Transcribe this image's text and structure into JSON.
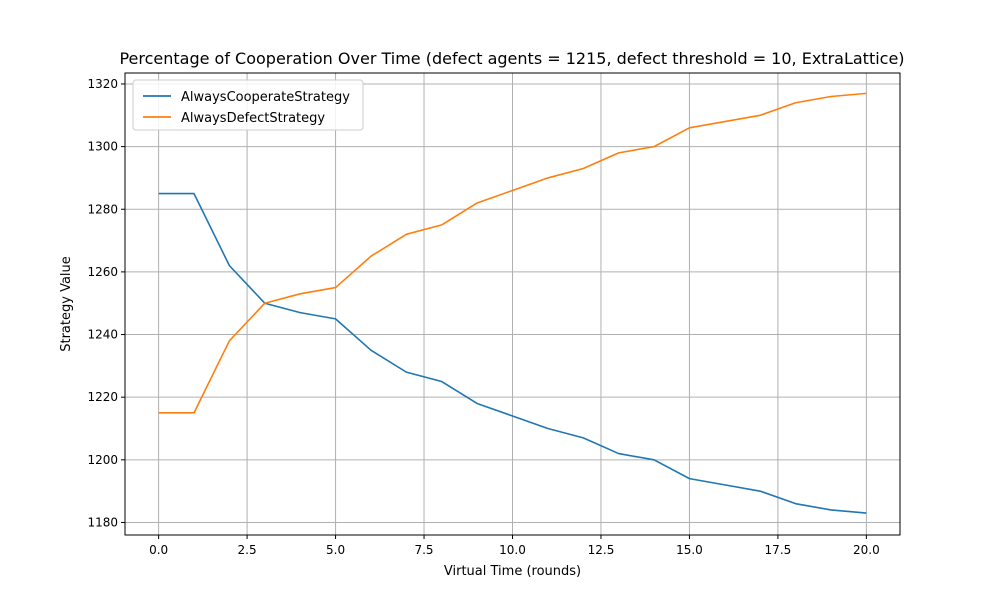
{
  "chart_data": {
    "type": "line",
    "title": "Percentage of Cooperation Over Time (defect agents = 1215, defect threshold = 10, ExtraLattice)",
    "xlabel": "Virtual Time (rounds)",
    "ylabel": "Strategy Value",
    "xlim": [
      -0.95,
      20.95
    ],
    "ylim": [
      1176,
      1323.5
    ],
    "x_ticks": [
      "0.0",
      "2.5",
      "5.0",
      "7.5",
      "10.0",
      "12.5",
      "15.0",
      "17.5",
      "20.0"
    ],
    "x_tick_values": [
      0,
      2.5,
      5,
      7.5,
      10,
      12.5,
      15,
      17.5,
      20
    ],
    "y_ticks": [
      "1180",
      "1200",
      "1220",
      "1240",
      "1260",
      "1280",
      "1300",
      "1320"
    ],
    "y_tick_values": [
      1180,
      1200,
      1220,
      1240,
      1260,
      1280,
      1300,
      1320
    ],
    "grid": true,
    "legend_position": "top-left",
    "x": [
      0,
      1,
      2,
      3,
      4,
      5,
      6,
      7,
      8,
      9,
      10,
      11,
      12,
      13,
      14,
      15,
      16,
      17,
      18,
      19,
      20
    ],
    "series": [
      {
        "name": "AlwaysCooperateStrategy",
        "color": "#1f77b4",
        "values": [
          1285,
          1285,
          1262,
          1250,
          1247,
          1245,
          1235,
          1228,
          1225,
          1218,
          1214,
          1210,
          1207,
          1202,
          1200,
          1194,
          1192,
          1190,
          1186,
          1184,
          1183
        ]
      },
      {
        "name": "AlwaysDefectStrategy",
        "color": "#ff7f0e",
        "values": [
          1215,
          1215,
          1238,
          1250,
          1253,
          1255,
          1265,
          1272,
          1275,
          1282,
          1286,
          1290,
          1293,
          1298,
          1300,
          1306,
          1308,
          1310,
          1314,
          1316,
          1317
        ]
      }
    ]
  }
}
